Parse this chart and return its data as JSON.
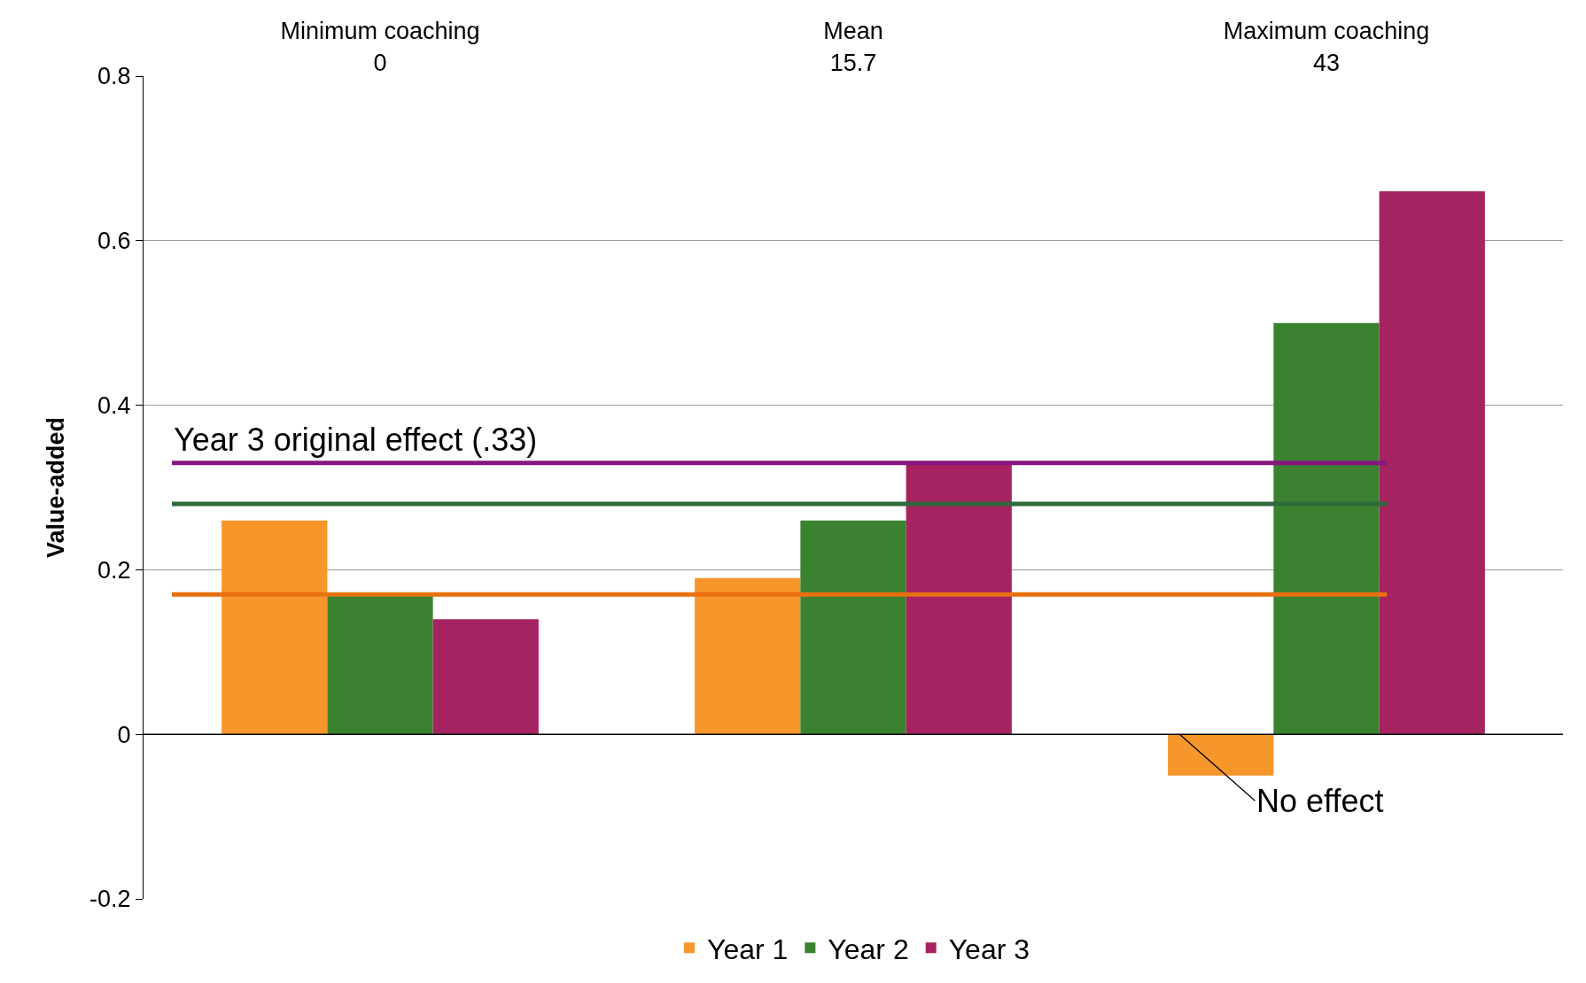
{
  "chart_data": {
    "type": "bar",
    "ylabel": "Value-added",
    "categories": [
      "Minimum coaching\n0",
      "Mean\n15.7",
      "Maximum coaching\n43"
    ],
    "series": [
      {
        "name": "Year 1",
        "color": "#f7962a",
        "values": [
          0.26,
          0.19,
          -0.05
        ]
      },
      {
        "name": "Year 2",
        "color": "#3a8130",
        "values": [
          0.17,
          0.26,
          0.5
        ]
      },
      {
        "name": "Year 3",
        "color": "#a52360",
        "values": [
          0.14,
          0.33,
          0.66
        ]
      }
    ],
    "ylim": [
      -0.2,
      0.8
    ],
    "yticks": [
      -0.2,
      0,
      0.2,
      0.4,
      0.6,
      0.8
    ],
    "grid": "y",
    "legend": "bottom",
    "ref_lines": [
      {
        "axis": "y",
        "value": 0.33,
        "label": "Year 3 original effect (.33)",
        "color": "#87177f"
      },
      {
        "axis": "y",
        "value": 0.28,
        "color": "#2f6a3a"
      },
      {
        "axis": "y",
        "value": 0.17,
        "color": "#e8710f"
      },
      {
        "axis": "y",
        "value": 0,
        "label": "No effect",
        "color": "#000000"
      }
    ]
  }
}
